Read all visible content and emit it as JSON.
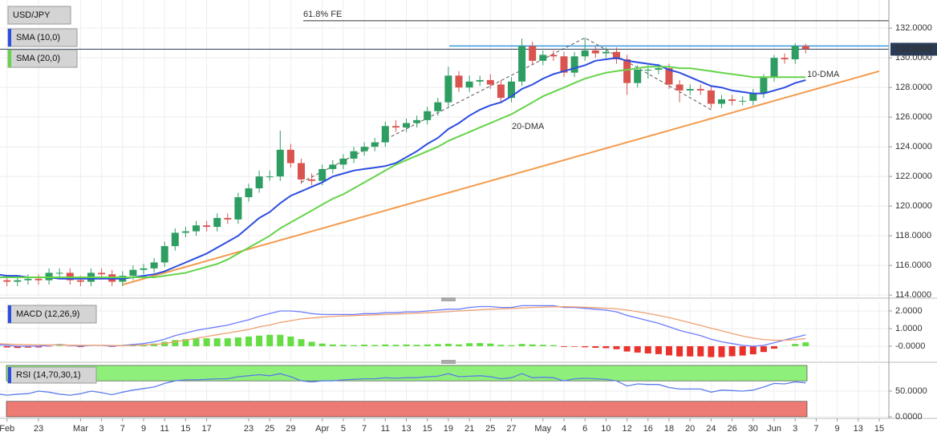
{
  "chart_data": [
    {
      "type": "candlestick",
      "title": "USD/JPY",
      "categories": [
        null,
        "Feb",
        null,
        null,
        "23",
        null,
        null,
        null,
        "Mar",
        null,
        "3",
        null,
        "7",
        null,
        "9",
        null,
        "11",
        null,
        "15",
        null,
        "17",
        null,
        null,
        null,
        "23",
        null,
        "25",
        null,
        "29",
        null,
        null,
        "Apr",
        null,
        "5",
        null,
        "7",
        null,
        "11",
        null,
        "13",
        null,
        "15",
        null,
        "19",
        null,
        "21",
        null,
        "25",
        null,
        "27",
        null,
        null,
        "May",
        null,
        "4",
        null,
        "6",
        null,
        "10",
        null,
        "12",
        null,
        "16",
        null,
        "18",
        null,
        "20",
        null,
        "24",
        null,
        "26",
        null,
        "30",
        null,
        "Jun",
        null,
        "3",
        null,
        "7",
        null,
        "9",
        null,
        "13",
        null,
        "15"
      ],
      "open": [
        115.1,
        115.0,
        114.9,
        115.0,
        115.1,
        115.0,
        115.5,
        115.5,
        115.0,
        114.9,
        115.5,
        115.4,
        114.9,
        115.3,
        115.7,
        115.8,
        116.2,
        117.3,
        118.2,
        118.3,
        118.7,
        118.6,
        119.2,
        119.1,
        120.6,
        121.2,
        122.0,
        122.0,
        123.8,
        122.9,
        121.8,
        121.7,
        122.5,
        122.8,
        123.2,
        123.7,
        124.0,
        124.3,
        125.4,
        125.3,
        125.6,
        125.8,
        126.4,
        127.0,
        128.8,
        128.0,
        128.4,
        128.5,
        128.2,
        127.3,
        128.4,
        130.8,
        129.8,
        130.2,
        130.1,
        129.0,
        130.1,
        130.5,
        130.3,
        130.4,
        129.9,
        128.3,
        129.2,
        129.2,
        129.3,
        128.2,
        127.8,
        127.9,
        127.8,
        126.9,
        127.2,
        127.1,
        127.1,
        127.6,
        128.7,
        130.0,
        129.9,
        130.8,
        null,
        null,
        null,
        null,
        null,
        null,
        null
      ],
      "high": [
        115.4,
        115.3,
        115.3,
        115.4,
        115.4,
        115.8,
        115.8,
        115.8,
        115.3,
        115.8,
        115.8,
        115.7,
        115.6,
        116.0,
        116.1,
        116.5,
        117.6,
        118.5,
        118.6,
        119.0,
        119.0,
        119.5,
        119.5,
        120.9,
        121.5,
        122.4,
        122.4,
        125.1,
        124.2,
        123.2,
        122.2,
        122.8,
        123.1,
        123.5,
        124.0,
        124.3,
        124.6,
        125.7,
        125.8,
        125.9,
        126.1,
        126.7,
        127.3,
        129.4,
        129.1,
        128.8,
        128.8,
        128.9,
        128.5,
        128.7,
        131.3,
        131.1,
        130.5,
        130.5,
        130.4,
        130.4,
        131.35,
        130.8,
        130.7,
        130.7,
        130.2,
        129.5,
        129.5,
        129.6,
        129.6,
        128.5,
        128.2,
        128.2,
        128.1,
        127.5,
        127.5,
        127.4,
        127.9,
        128.9,
        130.2,
        130.3,
        130.98,
        130.95,
        null,
        null,
        null,
        null,
        null,
        null,
        null
      ],
      "low": [
        114.7,
        114.6,
        114.6,
        114.7,
        114.7,
        114.7,
        115.2,
        114.7,
        114.6,
        114.6,
        115.1,
        114.6,
        114.6,
        115.0,
        115.4,
        115.5,
        115.9,
        117.0,
        117.9,
        118.0,
        118.3,
        118.3,
        118.8,
        118.8,
        120.3,
        120.9,
        121.7,
        121.7,
        122.6,
        121.5,
        121.4,
        121.4,
        122.2,
        122.5,
        122.9,
        123.4,
        123.7,
        124.0,
        125.0,
        125.0,
        125.3,
        125.5,
        126.1,
        126.7,
        127.7,
        127.7,
        128.1,
        127.9,
        127.0,
        127.0,
        128.1,
        129.5,
        129.5,
        129.8,
        128.7,
        128.7,
        129.8,
        130.0,
        130.0,
        129.6,
        127.5,
        128.0,
        128.6,
        128.9,
        127.9,
        127.0,
        127.5,
        127.5,
        126.6,
        126.6,
        126.8,
        126.8,
        126.8,
        127.3,
        128.4,
        129.6,
        129.6,
        130.3,
        null,
        null,
        null,
        null,
        null,
        null,
        null
      ],
      "close": [
        115.0,
        114.9,
        115.0,
        115.1,
        115.0,
        115.5,
        115.5,
        115.0,
        114.9,
        115.5,
        115.4,
        114.9,
        115.3,
        115.7,
        115.8,
        116.2,
        117.3,
        118.2,
        118.3,
        118.7,
        118.6,
        119.2,
        119.1,
        120.6,
        121.2,
        122.0,
        122.0,
        123.8,
        122.9,
        121.8,
        121.7,
        122.5,
        122.8,
        123.2,
        123.7,
        124.0,
        124.3,
        125.4,
        125.3,
        125.6,
        125.8,
        126.4,
        127.0,
        128.8,
        128.0,
        128.4,
        128.5,
        128.2,
        127.3,
        128.4,
        130.8,
        129.8,
        130.2,
        130.1,
        129.0,
        130.1,
        130.5,
        130.3,
        130.4,
        129.9,
        128.3,
        129.2,
        129.2,
        129.3,
        128.2,
        127.8,
        127.9,
        127.8,
        126.9,
        127.2,
        127.1,
        127.1,
        127.6,
        128.7,
        130.0,
        129.9,
        130.8,
        130.6,
        null,
        null,
        null,
        null,
        null,
        null,
        null
      ],
      "up_color": "#2e9d62",
      "down_color": "#d9534f",
      "series": [
        {
          "name": "SMA (10,0)",
          "color": "#2d4de0",
          "values": [
            115.4,
            115.3,
            115.3,
            115.2,
            115.2,
            115.2,
            115.1,
            115.1,
            115.1,
            115.1,
            115.1,
            115.1,
            115.1,
            115.2,
            115.3,
            115.4,
            115.6,
            115.9,
            116.2,
            116.5,
            116.8,
            117.2,
            117.6,
            118.0,
            118.6,
            119.2,
            119.6,
            120.2,
            120.7,
            121.0,
            121.3,
            121.6,
            122.0,
            122.2,
            122.4,
            122.5,
            122.6,
            122.7,
            122.9,
            123.3,
            123.7,
            124.2,
            124.6,
            125.2,
            125.6,
            126.1,
            126.5,
            126.8,
            127.0,
            127.4,
            127.9,
            128.2,
            128.6,
            128.9,
            129.1,
            129.3,
            129.5,
            129.8,
            129.9,
            130.0,
            129.8,
            129.7,
            129.6,
            129.5,
            129.2,
            129.0,
            128.7,
            128.4,
            128.1,
            128.0,
            127.8,
            127.7,
            127.6,
            127.6,
            127.8,
            128.0,
            128.3,
            128.5,
            null,
            null,
            null,
            null,
            null,
            null,
            null
          ]
        },
        {
          "name": "SMA (20,0)",
          "color": "#66d44a",
          "values": [
            115.2,
            115.2,
            115.2,
            115.2,
            115.2,
            115.2,
            115.2,
            115.2,
            115.2,
            115.2,
            115.2,
            115.2,
            115.2,
            115.2,
            115.2,
            115.2,
            115.3,
            115.4,
            115.5,
            115.7,
            115.9,
            116.1,
            116.4,
            116.8,
            117.2,
            117.6,
            118.0,
            118.5,
            118.9,
            119.3,
            119.7,
            120.1,
            120.5,
            120.8,
            121.2,
            121.6,
            122.0,
            122.4,
            122.8,
            123.1,
            123.4,
            123.7,
            124.0,
            124.4,
            124.7,
            125.0,
            125.3,
            125.6,
            125.9,
            126.2,
            126.6,
            127.0,
            127.4,
            127.7,
            128.0,
            128.3,
            128.6,
            128.8,
            129.0,
            129.1,
            129.2,
            129.3,
            129.4,
            129.4,
            129.4,
            129.3,
            129.3,
            129.2,
            129.1,
            129.0,
            128.9,
            128.8,
            128.7,
            128.7,
            128.7,
            128.7,
            128.7,
            128.7,
            null,
            null,
            null,
            null,
            null,
            null,
            null
          ]
        }
      ],
      "trendline": {
        "color": "#f39a4b",
        "values": [
          null,
          null,
          null,
          null,
          null,
          null,
          null,
          null,
          null,
          null,
          null,
          null,
          114.7,
          114.9,
          115.1,
          115.3,
          115.5,
          115.7,
          115.9,
          116.1,
          116.3,
          116.5,
          116.7,
          116.9,
          117.1,
          117.3,
          117.5,
          117.7,
          117.9,
          118.1,
          118.3,
          118.5,
          118.7,
          118.9,
          119.1,
          119.3,
          119.5,
          119.7,
          119.9,
          120.1,
          120.3,
          120.5,
          120.7,
          120.9,
          121.1,
          121.3,
          121.5,
          121.7,
          121.9,
          122.1,
          122.3,
          122.5,
          122.7,
          122.9,
          123.1,
          123.3,
          123.5,
          123.7,
          123.9,
          124.1,
          124.3,
          124.5,
          124.7,
          124.9,
          125.1,
          125.3,
          125.5,
          125.7,
          125.9,
          126.1,
          126.3,
          126.5,
          126.7,
          126.9,
          127.1,
          127.3,
          127.5,
          127.7,
          127.9,
          128.1,
          128.3,
          128.5,
          128.7,
          128.9,
          129.1
        ]
      },
      "levels": [
        {
          "label": "61.8% FE",
          "value": 132.5,
          "color": "#333333"
        },
        {
          "value": 130.8,
          "color": "#3b9be0"
        }
      ],
      "zigzag": [
        121.6,
        131.35,
        126.5
      ],
      "last_price": {
        "value": 130.58,
        "label": "130.5800"
      },
      "annotations": [
        "20-DMA",
        "10-DMA"
      ],
      "ylim": [
        113.9,
        133.9
      ],
      "yticks": [
        {
          "value": 132,
          "label": "132.0000"
        },
        {
          "value": 130,
          "label": "130.0000"
        },
        {
          "value": 128,
          "label": "128.0000"
        },
        {
          "value": 126,
          "label": "126.0000"
        },
        {
          "value": 124,
          "label": "124.0000"
        },
        {
          "value": 122,
          "label": "122.0000"
        },
        {
          "value": 120,
          "label": "120.0000"
        },
        {
          "value": 118,
          "label": "118.0000"
        },
        {
          "value": 116,
          "label": "116.0000"
        },
        {
          "value": 114,
          "label": "114.0000"
        }
      ]
    },
    {
      "type": "macd",
      "title": "MACD (12,26,9)",
      "histogram": {
        "up_color": "#66dd44",
        "down_color": "#e8322b",
        "values": [
          -0.05,
          -0.07,
          -0.1,
          -0.08,
          -0.07,
          -0.02,
          0.03,
          -0.01,
          -0.05,
          0.0,
          0.0,
          -0.04,
          0.01,
          0.05,
          0.08,
          0.15,
          0.25,
          0.35,
          0.4,
          0.45,
          0.45,
          0.45,
          0.45,
          0.5,
          0.55,
          0.6,
          0.65,
          0.65,
          0.55,
          0.4,
          0.25,
          0.15,
          0.1,
          0.08,
          0.06,
          0.09,
          0.07,
          0.1,
          0.08,
          0.1,
          0.08,
          0.1,
          0.12,
          0.14,
          0.1,
          0.17,
          0.18,
          0.15,
          0.08,
          0.06,
          0.13,
          0.1,
          0.08,
          0.06,
          -0.04,
          -0.03,
          -0.06,
          -0.09,
          -0.11,
          -0.17,
          -0.3,
          -0.36,
          -0.41,
          -0.45,
          -0.52,
          -0.58,
          -0.58,
          -0.58,
          -0.62,
          -0.62,
          -0.57,
          -0.53,
          -0.46,
          -0.33,
          -0.14,
          0.01,
          0.13,
          0.22,
          null,
          null,
          null,
          null,
          null,
          null,
          null
        ]
      },
      "series": [
        {
          "color": "#6b7cff",
          "values": [
            0.1,
            0.05,
            0.0,
            0.0,
            0.0,
            0.05,
            0.1,
            0.05,
            0.0,
            0.05,
            0.05,
            0.0,
            0.05,
            0.1,
            0.15,
            0.25,
            0.4,
            0.6,
            0.75,
            0.9,
            1.0,
            1.1,
            1.2,
            1.35,
            1.5,
            1.7,
            1.85,
            2.0,
            2.0,
            1.95,
            1.85,
            1.8,
            1.8,
            1.8,
            1.8,
            1.85,
            1.85,
            1.9,
            1.9,
            1.95,
            1.95,
            2.0,
            2.05,
            2.1,
            2.1,
            2.2,
            2.25,
            2.25,
            2.2,
            2.2,
            2.3,
            2.3,
            2.3,
            2.3,
            2.2,
            2.2,
            2.15,
            2.1,
            2.05,
            1.95,
            1.75,
            1.6,
            1.45,
            1.3,
            1.1,
            0.9,
            0.75,
            0.6,
            0.4,
            0.25,
            0.15,
            0.05,
            0.0,
            0.05,
            0.2,
            0.35,
            0.5,
            0.65,
            null,
            null,
            null,
            null,
            null,
            null,
            null
          ]
        },
        {
          "color": "#f0a070",
          "values": [
            0.15,
            0.12,
            0.1,
            0.08,
            0.07,
            0.07,
            0.07,
            0.06,
            0.05,
            0.05,
            0.05,
            0.04,
            0.04,
            0.05,
            0.07,
            0.1,
            0.15,
            0.25,
            0.35,
            0.45,
            0.55,
            0.65,
            0.75,
            0.85,
            0.95,
            1.1,
            1.2,
            1.35,
            1.45,
            1.55,
            1.6,
            1.65,
            1.7,
            1.72,
            1.74,
            1.76,
            1.78,
            1.8,
            1.82,
            1.85,
            1.87,
            1.9,
            1.93,
            1.96,
            2.0,
            2.03,
            2.07,
            2.1,
            2.12,
            2.14,
            2.17,
            2.2,
            2.22,
            2.24,
            2.24,
            2.23,
            2.21,
            2.19,
            2.16,
            2.12,
            2.05,
            1.96,
            1.86,
            1.75,
            1.62,
            1.48,
            1.33,
            1.18,
            1.02,
            0.87,
            0.72,
            0.58,
            0.46,
            0.38,
            0.34,
            0.34,
            0.37,
            0.43,
            null,
            null,
            null,
            null,
            null,
            null,
            null
          ]
        }
      ],
      "ylim": [
        -0.82,
        2.5
      ],
      "yticks": [
        {
          "value": 2,
          "label": "2.0000"
        },
        {
          "value": 1,
          "label": "1.0000"
        },
        {
          "value": 0,
          "label": "-0.0000"
        }
      ]
    },
    {
      "type": "rsi",
      "title": "RSI (14,70,30,1)",
      "zones": [
        {
          "from": 70,
          "to": 100,
          "color": "#8ef07a"
        },
        {
          "from": 0,
          "to": 30,
          "color": "#ee7a74"
        }
      ],
      "series": [
        {
          "color": "#5a7de8",
          "values": [
            45,
            42,
            44,
            45,
            50,
            48,
            44,
            42,
            45,
            50,
            47,
            43,
            48,
            52,
            55,
            58,
            65,
            70,
            72,
            72,
            73,
            74,
            74,
            78,
            80,
            82,
            80,
            84,
            78,
            70,
            68,
            70,
            70,
            72,
            73,
            74,
            74,
            76,
            75,
            76,
            76,
            78,
            79,
            84,
            78,
            79,
            80,
            78,
            74,
            76,
            84,
            76,
            77,
            76,
            70,
            74,
            75,
            74,
            73,
            70,
            60,
            64,
            63,
            63,
            57,
            54,
            54,
            54,
            48,
            52,
            51,
            50,
            52,
            58,
            65,
            64,
            68,
            66,
            null,
            null,
            null,
            null,
            null,
            null,
            null
          ]
        }
      ],
      "ylim": [
        0,
        101.5
      ],
      "yticks": [
        {
          "value": 50,
          "label": "50.0000"
        },
        {
          "value": 0,
          "label": "0.0000"
        }
      ]
    }
  ]
}
